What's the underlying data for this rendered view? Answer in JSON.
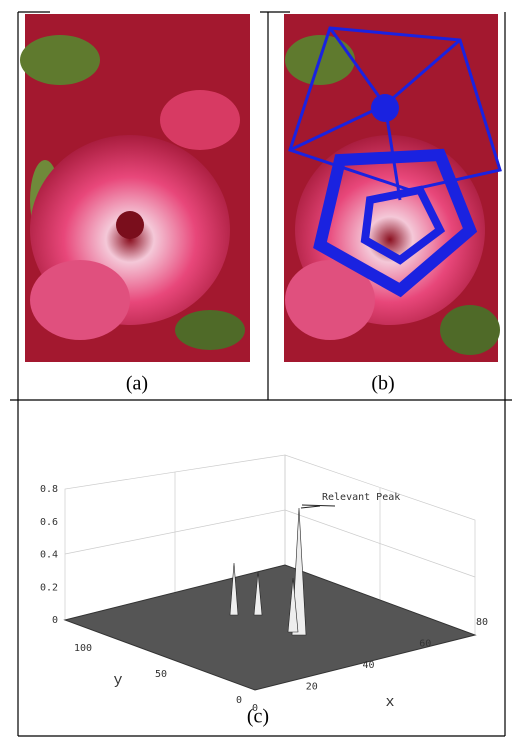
{
  "panels": [
    {
      "caption": "(a)"
    },
    {
      "caption": "(b)"
    },
    {
      "caption": "(c)"
    }
  ],
  "plot": {
    "annotation": "Relevant Peak",
    "x_label": "x",
    "y_label": "y",
    "z_ticks": [
      0,
      0.2,
      0.4,
      0.6,
      0.8
    ],
    "y_ticks": [
      100,
      50,
      0
    ],
    "x_ticks": [
      0,
      20,
      40,
      60,
      80
    ]
  }
}
